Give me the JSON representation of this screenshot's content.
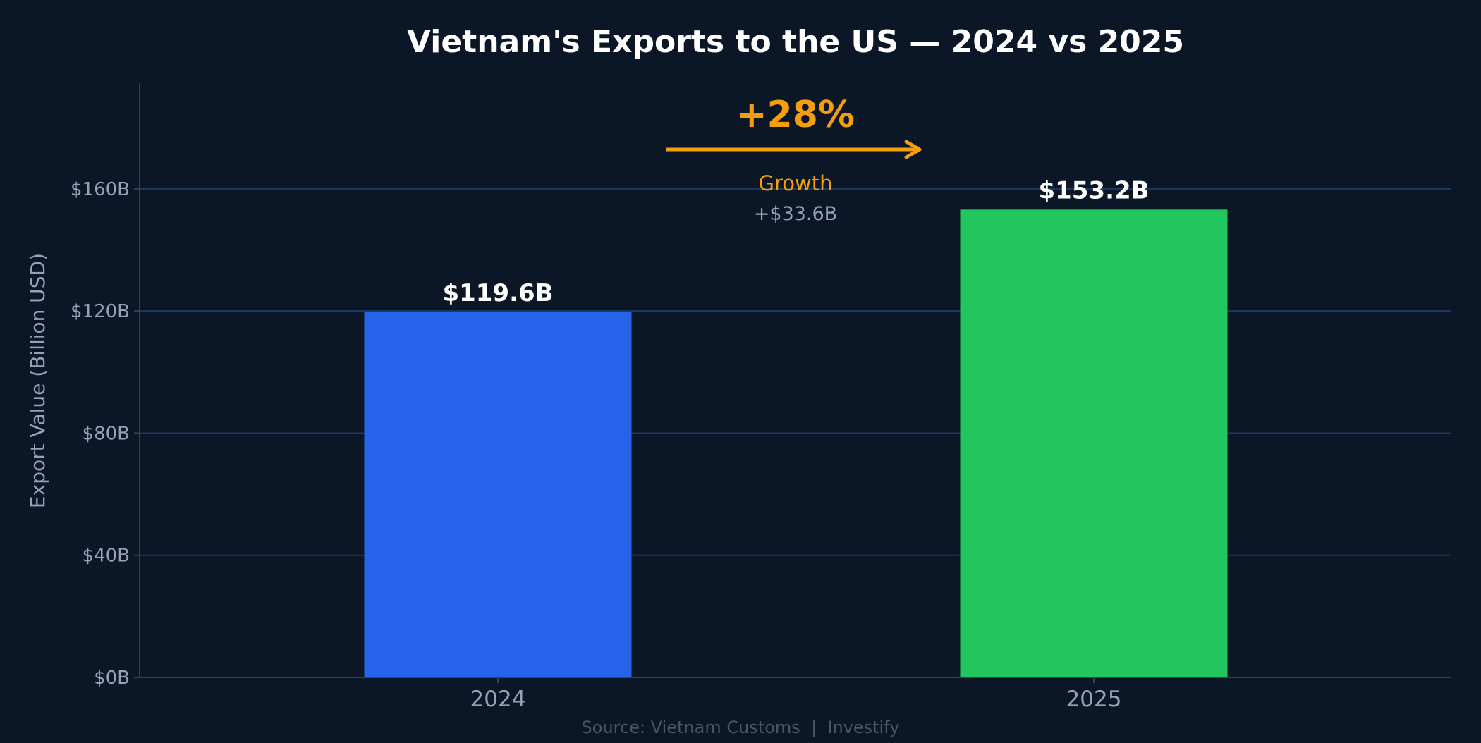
{
  "chart_data": {
    "type": "bar",
    "title": "Vietnam's Exports to the US — 2024 vs 2025",
    "categories": [
      "2024",
      "2025"
    ],
    "values": [
      119.6,
      153.2
    ],
    "value_labels": [
      "$119.6B",
      "$153.2B"
    ],
    "bar_colors": [
      "#2563eb",
      "#22c55e"
    ],
    "xlabel": "",
    "ylabel": "Export Value (Billion USD)",
    "ylim": [
      0,
      194.6
    ],
    "yticks": [
      0,
      40,
      80,
      120,
      160
    ],
    "ytick_labels": [
      "$0B",
      "$40B",
      "$80B",
      "$120B",
      "$160B"
    ],
    "grid": true,
    "annotation": {
      "percent": "+28%",
      "label": "Growth",
      "delta": "+$33.6B",
      "color": "#f59e0b"
    },
    "source": "Source: Vietnam Customs  |  Investify"
  },
  "colors": {
    "background": "#0b1727",
    "grid": "#1e3a5f",
    "tick_text": "#94a3b8"
  }
}
